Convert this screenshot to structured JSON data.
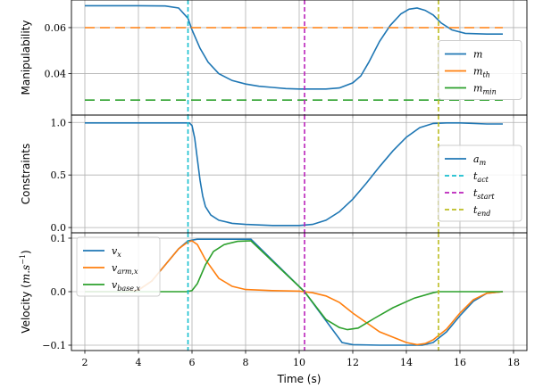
{
  "figure": {
    "xlabel": "Time (s)",
    "x_ticks": [
      2,
      4,
      6,
      8,
      10,
      12,
      14,
      16,
      18
    ],
    "xlim": [
      1.5,
      18.5
    ],
    "grid": true,
    "vlines": [
      {
        "name": "t_act",
        "x": 5.85,
        "color": "#17becf",
        "style": "dashed"
      },
      {
        "name": "t_start",
        "x": 10.2,
        "color": "#bb22bb",
        "style": "dashed"
      },
      {
        "name": "t_end",
        "x": 15.2,
        "color": "#bcbd22",
        "style": "dashed"
      }
    ]
  },
  "chart_data": [
    {
      "type": "line",
      "ylabel": "Manipulability",
      "ylim": [
        0.022,
        0.072
      ],
      "y_ticks": [
        0.04,
        0.06
      ],
      "y_tick_labels": [
        "0.04",
        "0.06"
      ],
      "legend_position": "center-right",
      "legend": [
        {
          "label": "m",
          "sub": "",
          "color": "#1f77b4",
          "style": "solid"
        },
        {
          "label": "m",
          "sub": "th",
          "color": "#ff7f0e",
          "style": "solid"
        },
        {
          "label": "m",
          "sub": "min",
          "color": "#2ca02c",
          "style": "solid"
        }
      ],
      "series": [
        {
          "name": "m",
          "color": "#1f77b4",
          "style": "solid",
          "x": [
            2,
            3,
            4,
            5,
            5.5,
            5.85,
            6.0,
            6.3,
            6.6,
            7.0,
            7.5,
            8.0,
            8.5,
            9.0,
            9.5,
            10.0,
            10.5,
            11.0,
            11.5,
            12.0,
            12.3,
            12.6,
            13.0,
            13.4,
            13.8,
            14.1,
            14.4,
            14.7,
            15.0,
            15.3,
            15.7,
            16.2,
            17.0,
            17.6
          ],
          "y": [
            0.0695,
            0.0695,
            0.0695,
            0.0694,
            0.0685,
            0.064,
            0.059,
            0.051,
            0.045,
            0.04,
            0.037,
            0.0355,
            0.0345,
            0.034,
            0.0335,
            0.0333,
            0.0333,
            0.0333,
            0.0338,
            0.036,
            0.039,
            0.045,
            0.054,
            0.061,
            0.066,
            0.068,
            0.0685,
            0.0675,
            0.0655,
            0.062,
            0.059,
            0.0575,
            0.0572,
            0.0572
          ]
        },
        {
          "name": "m_th",
          "color": "#ff7f0e",
          "style": "dashed",
          "x": [
            2,
            17.6
          ],
          "y": [
            0.06,
            0.06
          ]
        },
        {
          "name": "m_min",
          "color": "#2ca02c",
          "style": "dashed",
          "x": [
            2,
            17.6
          ],
          "y": [
            0.0285,
            0.0285
          ]
        }
      ]
    },
    {
      "type": "line",
      "ylabel": "Constraints",
      "ylim": [
        -0.05,
        1.07
      ],
      "y_ticks": [
        0.0,
        0.5,
        1.0
      ],
      "y_tick_labels": [
        "0.0",
        "0.5",
        "1.0"
      ],
      "legend_position": "right",
      "legend": [
        {
          "label": "a",
          "sub": "m",
          "color": "#1f77b4",
          "style": "solid"
        },
        {
          "label": "t",
          "sub": "act",
          "color": "#17becf",
          "style": "dashed"
        },
        {
          "label": "t",
          "sub": "start",
          "color": "#bb22bb",
          "style": "dashed"
        },
        {
          "label": "t",
          "sub": "end",
          "color": "#bcbd22",
          "style": "dashed"
        }
      ],
      "series": [
        {
          "name": "a_m",
          "color": "#1f77b4",
          "style": "solid",
          "x": [
            2,
            4,
            5.5,
            5.9,
            6.0,
            6.1,
            6.2,
            6.3,
            6.4,
            6.5,
            6.7,
            7.0,
            7.5,
            8.0,
            9.0,
            10.0,
            10.5,
            11.0,
            11.5,
            12.0,
            12.5,
            13.0,
            13.5,
            14.0,
            14.5,
            15.0,
            15.5,
            16.0,
            17.0,
            17.6
          ],
          "y": [
            0.995,
            0.995,
            0.995,
            0.995,
            0.97,
            0.85,
            0.65,
            0.45,
            0.3,
            0.2,
            0.12,
            0.07,
            0.04,
            0.03,
            0.02,
            0.02,
            0.03,
            0.07,
            0.15,
            0.27,
            0.42,
            0.58,
            0.73,
            0.86,
            0.95,
            0.99,
            0.995,
            0.995,
            0.985,
            0.985
          ]
        }
      ]
    },
    {
      "type": "line",
      "ylabel": "Velocity (m.s⁻¹)",
      "ylabel_main": "Velocity (",
      "ylabel_unit": "m.s",
      "ylabel_exp": "−1",
      "ylabel_close": ")",
      "ylim": [
        -0.11,
        0.11
      ],
      "y_ticks": [
        -0.1,
        0.0,
        0.1
      ],
      "y_tick_labels": [
        "−0.1",
        "0.0",
        "0.1"
      ],
      "legend_position": "top-left",
      "legend": [
        {
          "label": "v",
          "sub": "x",
          "color": "#1f77b4",
          "style": "solid"
        },
        {
          "label": "v",
          "sub": "arm,x",
          "color": "#ff7f0e",
          "style": "solid"
        },
        {
          "label": "v",
          "sub": "base,x",
          "color": "#2ca02c",
          "style": "solid"
        }
      ],
      "series": [
        {
          "name": "v_x",
          "color": "#1f77b4",
          "style": "solid",
          "x": [
            2,
            3.5,
            4.0,
            4.5,
            5.0,
            5.5,
            5.85,
            6.2,
            8.2,
            10.2,
            11.6,
            12.0,
            13.0,
            14.0,
            14.6,
            15.0,
            15.5,
            16.0,
            16.5,
            17.0,
            17.6
          ],
          "y": [
            0,
            0,
            0.003,
            0.02,
            0.05,
            0.08,
            0.095,
            0.098,
            0.098,
            0.0,
            -0.095,
            -0.099,
            -0.1,
            -0.1,
            -0.1,
            -0.095,
            -0.075,
            -0.045,
            -0.018,
            -0.003,
            0
          ]
        },
        {
          "name": "v_arm_x",
          "color": "#ff7f0e",
          "style": "solid",
          "x": [
            2,
            3.5,
            4.0,
            4.5,
            5.0,
            5.5,
            5.85,
            6.0,
            6.2,
            6.5,
            7.0,
            7.5,
            8.0,
            9.0,
            10.0,
            10.5,
            11.0,
            11.5,
            12.0,
            13.0,
            14.0,
            14.4,
            14.7,
            15.0,
            15.5,
            16.0,
            16.5,
            17.0,
            17.6
          ],
          "y": [
            0,
            0,
            0.003,
            0.02,
            0.05,
            0.08,
            0.093,
            0.095,
            0.088,
            0.06,
            0.025,
            0.01,
            0.004,
            0.002,
            0.001,
            -0.002,
            -0.008,
            -0.02,
            -0.04,
            -0.075,
            -0.095,
            -0.099,
            -0.097,
            -0.09,
            -0.07,
            -0.04,
            -0.015,
            -0.003,
            0
          ]
        },
        {
          "name": "v_base_x",
          "color": "#2ca02c",
          "style": "solid",
          "x": [
            2,
            5.8,
            6.0,
            6.2,
            6.5,
            6.8,
            7.2,
            7.7,
            8.2,
            10.2,
            11.0,
            11.5,
            11.8,
            12.2,
            12.8,
            13.5,
            14.3,
            15.0,
            15.2,
            17.6
          ],
          "y": [
            0,
            0,
            0.002,
            0.015,
            0.05,
            0.075,
            0.088,
            0.094,
            0.095,
            0.0,
            -0.052,
            -0.067,
            -0.071,
            -0.068,
            -0.05,
            -0.03,
            -0.012,
            -0.002,
            0,
            0
          ]
        }
      ]
    }
  ]
}
